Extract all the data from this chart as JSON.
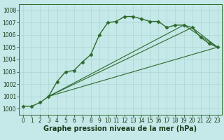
{
  "line1_x": [
    0,
    1,
    2,
    3,
    4,
    5,
    6,
    7,
    8,
    9,
    10,
    11,
    12,
    13,
    14,
    15,
    16,
    17,
    18,
    19,
    20,
    21,
    22,
    23
  ],
  "line1_y": [
    1000.2,
    1000.2,
    1000.5,
    1001.0,
    1002.2,
    1003.0,
    1003.1,
    1003.8,
    1004.4,
    1006.0,
    1007.0,
    1007.1,
    1007.5,
    1007.5,
    1007.3,
    1007.1,
    1007.1,
    1006.6,
    1006.8,
    1006.8,
    1006.6,
    1005.8,
    1005.3,
    1005.0
  ],
  "line2_x": [
    3,
    23
  ],
  "line2_y": [
    1001.0,
    1005.0
  ],
  "line3_x": [
    3,
    20,
    23
  ],
  "line3_y": [
    1001.0,
    1006.6,
    1005.0
  ],
  "line4_x": [
    3,
    19,
    23
  ],
  "line4_y": [
    1001.0,
    1006.8,
    1005.0
  ],
  "ylim": [
    999.5,
    1008.5
  ],
  "xlim": [
    -0.5,
    23.5
  ],
  "yticks": [
    1000,
    1001,
    1002,
    1003,
    1004,
    1005,
    1006,
    1007,
    1008
  ],
  "xticks": [
    0,
    1,
    2,
    3,
    4,
    5,
    6,
    7,
    8,
    9,
    10,
    11,
    12,
    13,
    14,
    15,
    16,
    17,
    18,
    19,
    20,
    21,
    22,
    23
  ],
  "xlabel": "Graphe pression niveau de la mer (hPa)",
  "bg_color": "#c5e8e8",
  "grid_color": "#aed4d4",
  "line_color": "#2d6a2d",
  "text_color": "#1a3a1a",
  "label_fontsize": 7,
  "tick_fontsize": 5.5
}
